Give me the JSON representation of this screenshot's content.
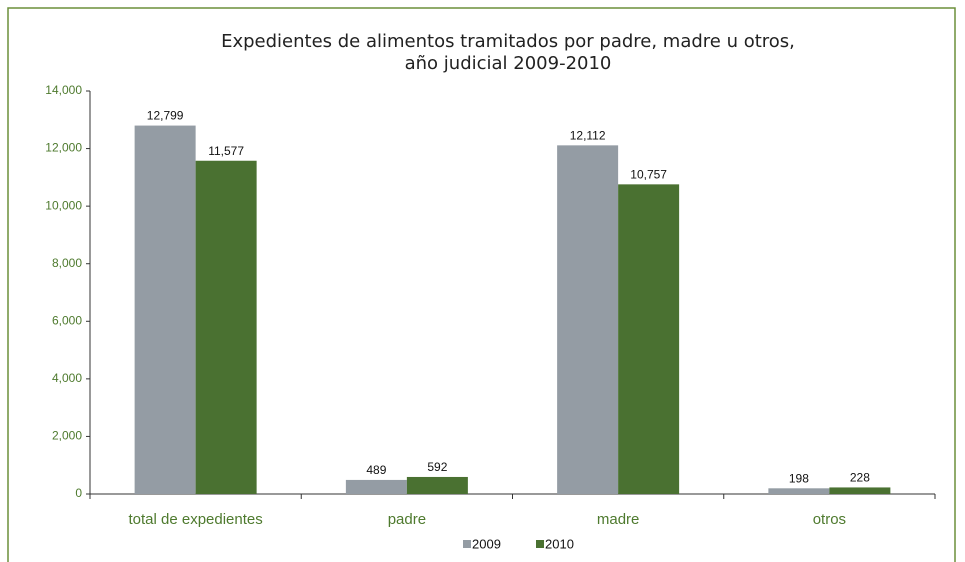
{
  "chart_data": {
    "type": "bar",
    "title": [
      "Expedientes de alimentos tramitados por padre, madre u otros,",
      "año judicial 2009-2010"
    ],
    "categories": [
      "total de expedientes",
      "padre",
      "madre",
      "otros"
    ],
    "series": [
      {
        "name": "2009",
        "color": "#949ca4",
        "values": [
          12799,
          489,
          12112,
          198
        ],
        "value_labels": [
          "12,799",
          "489",
          "12,112",
          "198"
        ]
      },
      {
        "name": "2010",
        "color": "#4a7131",
        "values": [
          11577,
          592,
          10757,
          228
        ],
        "value_labels": [
          "11,577",
          "592",
          "10,757",
          "228"
        ]
      }
    ],
    "ylim": [
      0,
      14000
    ],
    "yticks": [
      0,
      {
        "value": 2000,
        "label": "2,000"
      },
      {
        "value": 4000,
        "label": "4,000"
      },
      {
        "value": 6000,
        "label": "6,000"
      },
      {
        "value": 8000,
        "label": "8,000"
      },
      {
        "value": 10000,
        "label": "10,000"
      },
      {
        "value": 12000,
        "label": "12,000"
      },
      {
        "value": 14000,
        "label": "14,000"
      }
    ],
    "legend": "bottom"
  }
}
